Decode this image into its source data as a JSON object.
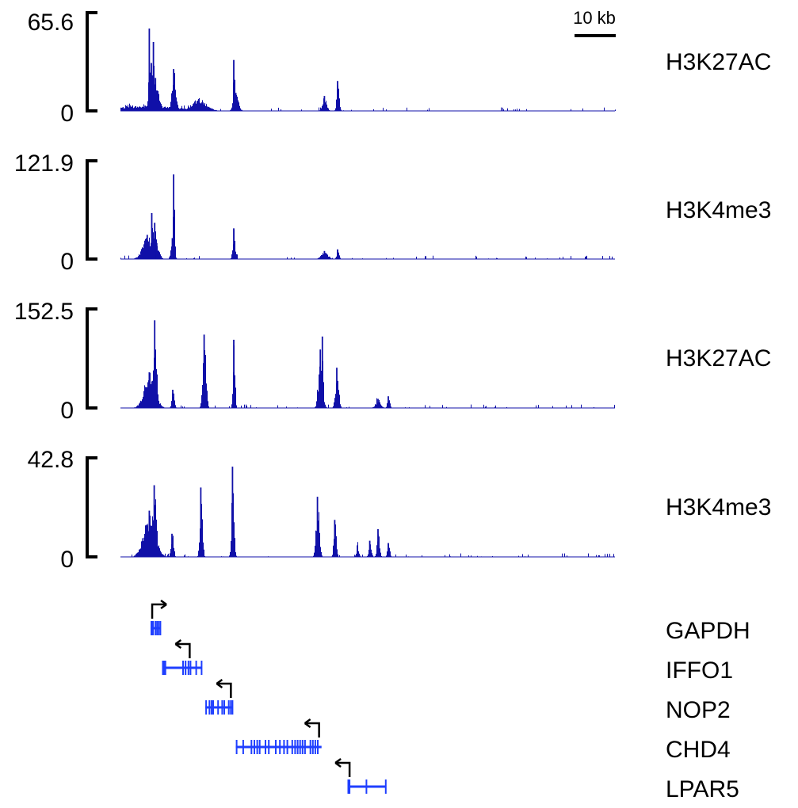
{
  "colors": {
    "signal": "#1010a8",
    "gene": "#1f3fff",
    "axis": "#000000",
    "arrow": "#000000"
  },
  "scale_bar": {
    "label": "10 kb",
    "length_kb": 10
  },
  "chart_data": [
    {
      "type": "area",
      "track": "H3K27AC",
      "ylim": [
        0,
        65.6
      ],
      "tick_labels": [
        "65.6",
        "0"
      ],
      "peaks": [
        {
          "pos_kb": 6,
          "height": 3.5,
          "width_kb": 8
        },
        {
          "pos_kb": 7.0,
          "height": 55,
          "width_kb": 0.2
        },
        {
          "pos_kb": 7.5,
          "height": 32,
          "width_kb": 0.6
        },
        {
          "pos_kb": 8.0,
          "height": 46,
          "width_kb": 0.3
        },
        {
          "pos_kb": 8.5,
          "height": 22,
          "width_kb": 0.8
        },
        {
          "pos_kb": 12.9,
          "height": 28,
          "width_kb": 0.5
        },
        {
          "pos_kb": 19.0,
          "height": 8,
          "width_kb": 1.8
        },
        {
          "pos_kb": 27.5,
          "height": 34,
          "width_kb": 0.2
        },
        {
          "pos_kb": 28.0,
          "height": 12,
          "width_kb": 0.6
        },
        {
          "pos_kb": 49.5,
          "height": 10,
          "width_kb": 0.5
        },
        {
          "pos_kb": 52.7,
          "height": 20,
          "width_kb": 0.3
        }
      ]
    },
    {
      "type": "area",
      "track": "H3K4me3",
      "ylim": [
        0,
        121.9
      ],
      "tick_labels": [
        "121.9",
        "0"
      ],
      "peaks": [
        {
          "pos_kb": 6.5,
          "height": 30,
          "width_kb": 1.2
        },
        {
          "pos_kb": 7.6,
          "height": 57,
          "width_kb": 0.3
        },
        {
          "pos_kb": 8.3,
          "height": 45,
          "width_kb": 0.4
        },
        {
          "pos_kb": 8.8,
          "height": 20,
          "width_kb": 0.6
        },
        {
          "pos_kb": 12.6,
          "height": 26,
          "width_kb": 0.4
        },
        {
          "pos_kb": 12.9,
          "height": 105,
          "width_kb": 0.2
        },
        {
          "pos_kb": 27.5,
          "height": 38,
          "width_kb": 0.3
        },
        {
          "pos_kb": 49.5,
          "height": 10,
          "width_kb": 0.8
        },
        {
          "pos_kb": 52.7,
          "height": 12,
          "width_kb": 0.3
        }
      ]
    },
    {
      "type": "area",
      "track": "H3K27AC",
      "ylim": [
        0,
        152.5
      ],
      "tick_labels": [
        "152.5",
        "0"
      ],
      "peaks": [
        {
          "pos_kb": 7.0,
          "height": 55,
          "width_kb": 1.3
        },
        {
          "pos_kb": 8.3,
          "height": 135,
          "width_kb": 0.4
        },
        {
          "pos_kb": 12.7,
          "height": 28,
          "width_kb": 0.3
        },
        {
          "pos_kb": 20.3,
          "height": 113,
          "width_kb": 0.4
        },
        {
          "pos_kb": 27.5,
          "height": 105,
          "width_kb": 0.25
        },
        {
          "pos_kb": 48.5,
          "height": 90,
          "width_kb": 0.5
        },
        {
          "pos_kb": 49.0,
          "height": 110,
          "width_kb": 0.2
        },
        {
          "pos_kb": 52.5,
          "height": 62,
          "width_kb": 0.4
        },
        {
          "pos_kb": 62.5,
          "height": 14,
          "width_kb": 0.6
        },
        {
          "pos_kb": 65.0,
          "height": 18,
          "width_kb": 0.3
        }
      ]
    },
    {
      "type": "area",
      "track": "H3K4me3",
      "ylim": [
        0,
        42.8
      ],
      "tick_labels": [
        "42.8",
        "0"
      ],
      "peaks": [
        {
          "pos_kb": 7.0,
          "height": 20,
          "width_kb": 1.4
        },
        {
          "pos_kb": 8.2,
          "height": 31,
          "width_kb": 0.5
        },
        {
          "pos_kb": 12.5,
          "height": 10,
          "width_kb": 0.3
        },
        {
          "pos_kb": 19.5,
          "height": 30,
          "width_kb": 0.3
        },
        {
          "pos_kb": 27.2,
          "height": 39,
          "width_kb": 0.3
        },
        {
          "pos_kb": 47.8,
          "height": 26,
          "width_kb": 0.4
        },
        {
          "pos_kb": 52.0,
          "height": 16,
          "width_kb": 0.3
        },
        {
          "pos_kb": 57.5,
          "height": 5,
          "width_kb": 0.3
        },
        {
          "pos_kb": 60.5,
          "height": 7,
          "width_kb": 0.3
        },
        {
          "pos_kb": 62.5,
          "height": 12,
          "width_kb": 0.3
        },
        {
          "pos_kb": 65.0,
          "height": 6,
          "width_kb": 0.3
        }
      ]
    }
  ],
  "genes": [
    {
      "name": "GAPDH",
      "start_kb": 7.3,
      "end_kb": 9.7,
      "tss_kb": 7.7,
      "strand": "+",
      "exons": [
        [
          7.3,
          8.1
        ],
        [
          8.3,
          8.6
        ],
        [
          8.7,
          9.0
        ],
        [
          9.1,
          9.4
        ],
        [
          9.5,
          9.7
        ]
      ]
    },
    {
      "name": "IFFO1",
      "start_kb": 10.1,
      "end_kb": 19.7,
      "tss_kb": 16.8,
      "strand": "-",
      "exons": [
        [
          10.1,
          11.1
        ],
        [
          15.0,
          15.3
        ],
        [
          15.6,
          16.0
        ],
        [
          16.3,
          16.5
        ],
        [
          16.8,
          17.0
        ],
        [
          18.2,
          18.4
        ],
        [
          19.5,
          19.7
        ]
      ]
    },
    {
      "name": "NOP2",
      "start_kb": 20.6,
      "end_kb": 27.3,
      "tss_kb": 26.8,
      "strand": "-",
      "exons": [
        [
          20.6,
          20.9
        ],
        [
          21.4,
          21.6
        ],
        [
          21.9,
          22.1
        ],
        [
          22.3,
          22.6
        ],
        [
          23.5,
          23.8
        ],
        [
          24.5,
          24.8
        ],
        [
          25.0,
          25.2
        ],
        [
          26.1,
          26.3
        ],
        [
          26.6,
          26.8
        ],
        [
          27.0,
          27.3
        ]
      ]
    },
    {
      "name": "CHD4",
      "start_kb": 28.0,
      "end_kb": 48.8,
      "tss_kb": 48.2,
      "strand": "-",
      "exons": [
        [
          28.0,
          28.3
        ],
        [
          29.6,
          29.8
        ],
        [
          31.6,
          31.8
        ],
        [
          32.3,
          32.5
        ],
        [
          33.0,
          33.2
        ],
        [
          33.6,
          33.8
        ],
        [
          35.0,
          35.2
        ],
        [
          35.8,
          36.0
        ],
        [
          37.5,
          37.7
        ],
        [
          38.5,
          38.7
        ],
        [
          39.5,
          39.7
        ],
        [
          40.3,
          40.5
        ],
        [
          41.5,
          41.7
        ],
        [
          42.2,
          42.4
        ],
        [
          42.8,
          43.0
        ],
        [
          43.4,
          43.6
        ],
        [
          44.0,
          44.2
        ],
        [
          44.6,
          44.8
        ],
        [
          45.9,
          46.1
        ],
        [
          46.5,
          46.7
        ],
        [
          47.1,
          47.3
        ],
        [
          47.7,
          48.0
        ]
      ]
    },
    {
      "name": "LPAR5",
      "start_kb": 55.1,
      "end_kb": 64.3,
      "tss_kb": 55.6,
      "strand": "-",
      "exons": [
        [
          55.1,
          55.8
        ],
        [
          59.5,
          59.6
        ],
        [
          64.2,
          64.3
        ]
      ]
    }
  ],
  "track_labels": [
    "H3K27AC",
    "H3K4me3",
    "H3K27AC",
    "H3K4me3"
  ]
}
